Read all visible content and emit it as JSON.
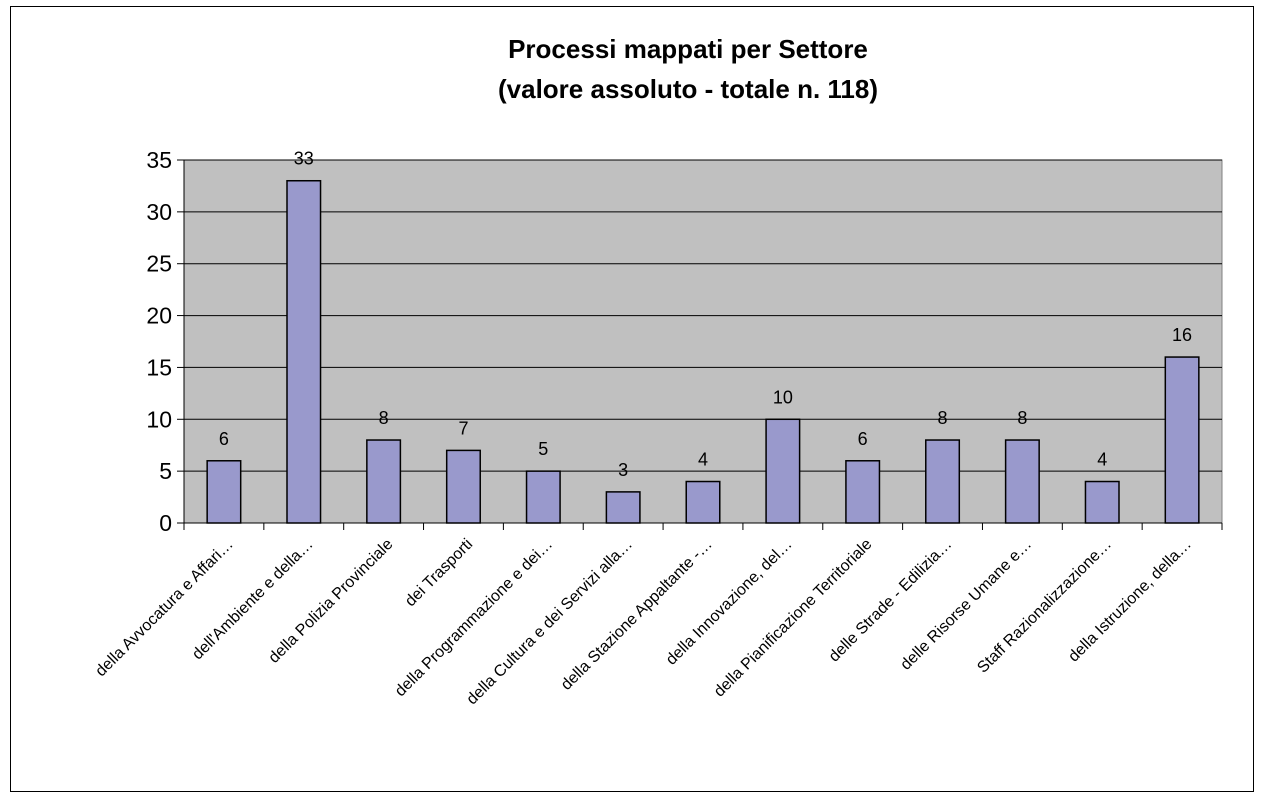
{
  "chart_data": {
    "type": "bar",
    "title": "Processi mappati per Settore",
    "subtitle": "(valore assoluto - totale n. 118)",
    "categories": [
      "della Avvocatura e Affari…",
      "dell'Ambiente e della…",
      "della Polizia Provinciale",
      "dei Trasporti",
      "della Programmazione e dei…",
      "della Cultura e dei Servizi alla…",
      "della Stazione Appaltante -…",
      "della Innovazione, del…",
      "della Pianificazione Territoriale",
      "delle Strade - Edilizia…",
      "delle Risorse Umane e…",
      "Staff Razionalizzazione…",
      "della Istruzione, della…"
    ],
    "values": [
      6,
      33,
      8,
      7,
      5,
      3,
      4,
      10,
      6,
      8,
      8,
      4,
      16
    ],
    "ylim": [
      0,
      35
    ],
    "yticks": [
      0,
      5,
      10,
      15,
      20,
      25,
      30,
      35
    ],
    "grid": true,
    "colors": {
      "plot_background": "#C0C0C0",
      "bar_fill": "#9999CC",
      "bar_stroke": "#000000"
    }
  }
}
